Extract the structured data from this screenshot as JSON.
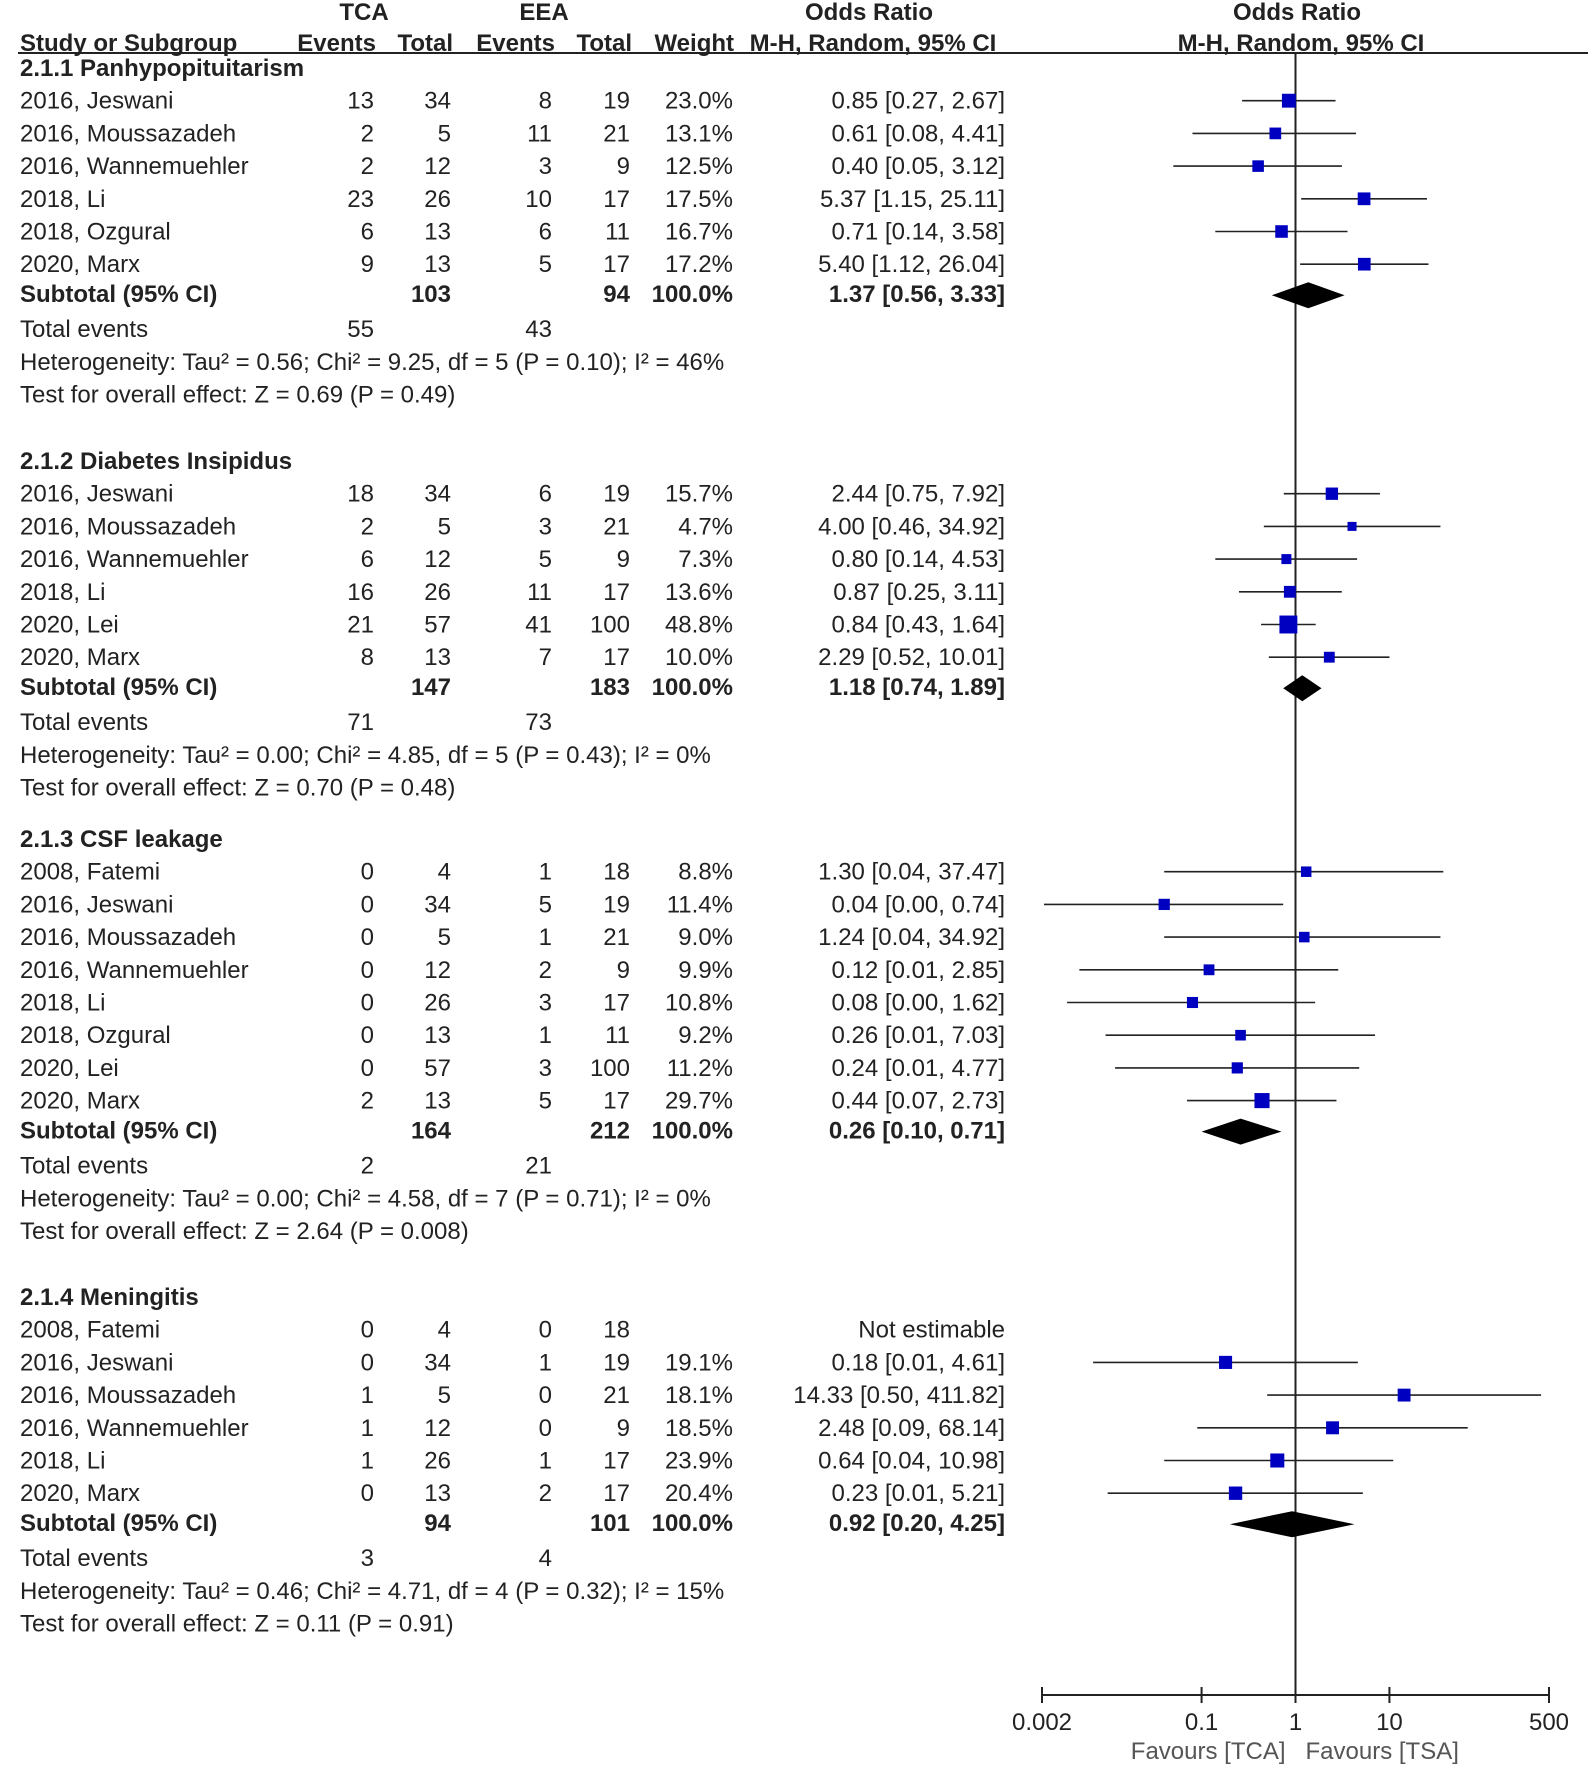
{
  "chart_data": {
    "type": "forest",
    "scale": "log",
    "xlim": [
      0.002,
      500
    ],
    "xticks": [
      {
        "value": 0.002,
        "label": "0.002"
      },
      {
        "value": 0.1,
        "label": "0.1"
      },
      {
        "value": 1,
        "label": "1"
      },
      {
        "value": 10,
        "label": "10"
      },
      {
        "value": 500,
        "label": "500"
      }
    ],
    "favours_left": "Favours [TCA]",
    "favours_right": "Favours [TSA]",
    "colors": {
      "marker": "#0000c0",
      "diamond": "#000000",
      "text": "#222222"
    },
    "headers": {
      "group1": "TCA",
      "group2": "EEA",
      "col_study": "Study or Subgroup",
      "col_events": "Events",
      "col_total": "Total",
      "col_weight": "Weight",
      "col_or": "Odds Ratio",
      "col_method": "M-H, Random, 95% CI",
      "plot_or": "Odds Ratio",
      "plot_method": "M-H, Random, 95% CI"
    },
    "subgroups": [
      {
        "title": "2.1.1 Panhypopituitarism",
        "studies": [
          {
            "study": "2016, Jeswani",
            "e1": "13",
            "t1": "34",
            "e2": "8",
            "t2": "19",
            "weight": "23.0%",
            "ci_text": "0.85 [0.27, 2.67]",
            "or": 0.85,
            "lo": 0.27,
            "hi": 2.67,
            "w": 23.0
          },
          {
            "study": "2016, Moussazadeh",
            "e1": "2",
            "t1": "5",
            "e2": "11",
            "t2": "21",
            "weight": "13.1%",
            "ci_text": "0.61 [0.08, 4.41]",
            "or": 0.61,
            "lo": 0.08,
            "hi": 4.41,
            "w": 13.1
          },
          {
            "study": "2016, Wannemuehler",
            "e1": "2",
            "t1": "12",
            "e2": "3",
            "t2": "9",
            "weight": "12.5%",
            "ci_text": "0.40 [0.05, 3.12]",
            "or": 0.4,
            "lo": 0.05,
            "hi": 3.12,
            "w": 12.5
          },
          {
            "study": "2018, Li",
            "e1": "23",
            "t1": "26",
            "e2": "10",
            "t2": "17",
            "weight": "17.5%",
            "ci_text": "5.37 [1.15, 25.11]",
            "or": 5.37,
            "lo": 1.15,
            "hi": 25.11,
            "w": 17.5
          },
          {
            "study": "2018, Ozgural",
            "e1": "6",
            "t1": "13",
            "e2": "6",
            "t2": "11",
            "weight": "16.7%",
            "ci_text": "0.71 [0.14, 3.58]",
            "or": 0.71,
            "lo": 0.14,
            "hi": 3.58,
            "w": 16.7
          },
          {
            "study": "2020, Marx",
            "e1": "9",
            "t1": "13",
            "e2": "5",
            "t2": "17",
            "weight": "17.2%",
            "ci_text": "5.40 [1.12, 26.04]",
            "or": 5.4,
            "lo": 1.12,
            "hi": 26.04,
            "w": 17.2
          }
        ],
        "subtotal": {
          "label": "Subtotal (95% CI)",
          "t1": "103",
          "t2": "94",
          "weight": "100.0%",
          "ci_text": "1.37 [0.56, 3.33]",
          "or": 1.37,
          "lo": 0.56,
          "hi": 3.33
        },
        "total_events": {
          "label": "Total events",
          "e1": "55",
          "e2": "43"
        },
        "heterogeneity": "Heterogeneity: Tau² = 0.56; Chi² = 9.25, df = 5 (P = 0.10); I² = 46%",
        "overall": "Test for overall effect: Z = 0.69 (P = 0.49)"
      },
      {
        "title": "2.1.2 Diabetes Insipidus",
        "studies": [
          {
            "study": "2016, Jeswani",
            "e1": "18",
            "t1": "34",
            "e2": "6",
            "t2": "19",
            "weight": "15.7%",
            "ci_text": "2.44 [0.75, 7.92]",
            "or": 2.44,
            "lo": 0.75,
            "hi": 7.92,
            "w": 15.7
          },
          {
            "study": "2016, Moussazadeh",
            "e1": "2",
            "t1": "5",
            "e2": "3",
            "t2": "21",
            "weight": "4.7%",
            "ci_text": "4.00 [0.46, 34.92]",
            "or": 4.0,
            "lo": 0.46,
            "hi": 34.92,
            "w": 4.7
          },
          {
            "study": "2016, Wannemuehler",
            "e1": "6",
            "t1": "12",
            "e2": "5",
            "t2": "9",
            "weight": "7.3%",
            "ci_text": "0.80 [0.14, 4.53]",
            "or": 0.8,
            "lo": 0.14,
            "hi": 4.53,
            "w": 7.3
          },
          {
            "study": "2018, Li",
            "e1": "16",
            "t1": "26",
            "e2": "11",
            "t2": "17",
            "weight": "13.6%",
            "ci_text": "0.87 [0.25, 3.11]",
            "or": 0.87,
            "lo": 0.25,
            "hi": 3.11,
            "w": 13.6
          },
          {
            "study": "2020, Lei",
            "e1": "21",
            "t1": "57",
            "e2": "41",
            "t2": "100",
            "weight": "48.8%",
            "ci_text": "0.84 [0.43, 1.64]",
            "or": 0.84,
            "lo": 0.43,
            "hi": 1.64,
            "w": 48.8
          },
          {
            "study": "2020, Marx",
            "e1": "8",
            "t1": "13",
            "e2": "7",
            "t2": "17",
            "weight": "10.0%",
            "ci_text": "2.29 [0.52, 10.01]",
            "or": 2.29,
            "lo": 0.52,
            "hi": 10.01,
            "w": 10.0
          }
        ],
        "subtotal": {
          "label": "Subtotal (95% CI)",
          "t1": "147",
          "t2": "183",
          "weight": "100.0%",
          "ci_text": "1.18 [0.74, 1.89]",
          "or": 1.18,
          "lo": 0.74,
          "hi": 1.89
        },
        "total_events": {
          "label": "Total events",
          "e1": "71",
          "e2": "73"
        },
        "heterogeneity": "Heterogeneity: Tau² = 0.00; Chi² = 4.85, df = 5 (P = 0.43); I² = 0%",
        "overall": "Test for overall effect: Z = 0.70 (P = 0.48)"
      },
      {
        "title": "2.1.3 CSF leakage",
        "studies": [
          {
            "study": "2008, Fatemi",
            "e1": "0",
            "t1": "4",
            "e2": "1",
            "t2": "18",
            "weight": "8.8%",
            "ci_text": "1.30 [0.04, 37.47]",
            "or": 1.3,
            "lo": 0.04,
            "hi": 37.47,
            "w": 8.8
          },
          {
            "study": "2016, Jeswani",
            "e1": "0",
            "t1": "34",
            "e2": "5",
            "t2": "19",
            "weight": "11.4%",
            "ci_text": "0.04 [0.00, 0.74]",
            "or": 0.04,
            "lo": 0.0021,
            "hi": 0.74,
            "w": 11.4
          },
          {
            "study": "2016, Moussazadeh",
            "e1": "0",
            "t1": "5",
            "e2": "1",
            "t2": "21",
            "weight": "9.0%",
            "ci_text": "1.24 [0.04, 34.92]",
            "or": 1.24,
            "lo": 0.04,
            "hi": 34.92,
            "w": 9.0
          },
          {
            "study": "2016, Wannemuehler",
            "e1": "0",
            "t1": "12",
            "e2": "2",
            "t2": "9",
            "weight": "9.9%",
            "ci_text": "0.12 [0.01, 2.85]",
            "or": 0.12,
            "lo": 0.005,
            "hi": 2.85,
            "w": 9.9
          },
          {
            "study": "2018, Li",
            "e1": "0",
            "t1": "26",
            "e2": "3",
            "t2": "17",
            "weight": "10.8%",
            "ci_text": "0.08 [0.00, 1.62]",
            "or": 0.08,
            "lo": 0.0037,
            "hi": 1.62,
            "w": 10.8
          },
          {
            "study": "2018, Ozgural",
            "e1": "0",
            "t1": "13",
            "e2": "1",
            "t2": "11",
            "weight": "9.2%",
            "ci_text": "0.26 [0.01, 7.03]",
            "or": 0.26,
            "lo": 0.0095,
            "hi": 7.03,
            "w": 9.2
          },
          {
            "study": "2020, Lei",
            "e1": "0",
            "t1": "57",
            "e2": "3",
            "t2": "100",
            "weight": "11.2%",
            "ci_text": "0.24 [0.01, 4.77]",
            "or": 0.24,
            "lo": 0.012,
            "hi": 4.77,
            "w": 11.2
          },
          {
            "study": "2020, Marx",
            "e1": "2",
            "t1": "13",
            "e2": "5",
            "t2": "17",
            "weight": "29.7%",
            "ci_text": "0.44 [0.07, 2.73]",
            "or": 0.44,
            "lo": 0.07,
            "hi": 2.73,
            "w": 29.7
          }
        ],
        "subtotal": {
          "label": "Subtotal (95% CI)",
          "t1": "164",
          "t2": "212",
          "weight": "100.0%",
          "ci_text": "0.26 [0.10, 0.71]",
          "or": 0.26,
          "lo": 0.1,
          "hi": 0.71
        },
        "total_events": {
          "label": "Total events",
          "e1": "2",
          "e2": "21"
        },
        "heterogeneity": "Heterogeneity: Tau² = 0.00; Chi² = 4.58, df = 7 (P = 0.71); I² = 0%",
        "overall": "Test for overall effect: Z = 2.64 (P = 0.008)"
      },
      {
        "title": "2.1.4 Meningitis",
        "studies": [
          {
            "study": "2008, Fatemi",
            "e1": "0",
            "t1": "4",
            "e2": "0",
            "t2": "18",
            "weight": "",
            "ci_text": "Not estimable",
            "or": null,
            "lo": null,
            "hi": null,
            "w": 0
          },
          {
            "study": "2016, Jeswani",
            "e1": "0",
            "t1": "34",
            "e2": "1",
            "t2": "19",
            "weight": "19.1%",
            "ci_text": "0.18 [0.01, 4.61]",
            "or": 0.18,
            "lo": 0.007,
            "hi": 4.61,
            "w": 19.1
          },
          {
            "study": "2016, Moussazadeh",
            "e1": "1",
            "t1": "5",
            "e2": "0",
            "t2": "21",
            "weight": "18.1%",
            "ci_text": "14.33 [0.50, 411.82]",
            "or": 14.33,
            "lo": 0.5,
            "hi": 411.82,
            "w": 18.1
          },
          {
            "study": "2016, Wannemuehler",
            "e1": "1",
            "t1": "12",
            "e2": "0",
            "t2": "9",
            "weight": "18.5%",
            "ci_text": "2.48 [0.09, 68.14]",
            "or": 2.48,
            "lo": 0.09,
            "hi": 68.14,
            "w": 18.5
          },
          {
            "study": "2018, Li",
            "e1": "1",
            "t1": "26",
            "e2": "1",
            "t2": "17",
            "weight": "23.9%",
            "ci_text": "0.64 [0.04, 10.98]",
            "or": 0.64,
            "lo": 0.04,
            "hi": 10.98,
            "w": 23.9
          },
          {
            "study": "2020, Marx",
            "e1": "0",
            "t1": "13",
            "e2": "2",
            "t2": "17",
            "weight": "20.4%",
            "ci_text": "0.23 [0.01, 5.21]",
            "or": 0.23,
            "lo": 0.01,
            "hi": 5.21,
            "w": 20.4
          }
        ],
        "subtotal": {
          "label": "Subtotal (95% CI)",
          "t1": "94",
          "t2": "101",
          "weight": "100.0%",
          "ci_text": "0.92 [0.20, 4.25]",
          "or": 0.92,
          "lo": 0.2,
          "hi": 4.25
        },
        "total_events": {
          "label": "Total events",
          "e1": "3",
          "e2": "4"
        },
        "heterogeneity": "Heterogeneity: Tau² = 0.46; Chi² = 4.71, df = 4 (P = 0.32); I² = 15%",
        "overall": "Test for overall effect: Z = 0.11 (P = 0.91)"
      }
    ]
  }
}
